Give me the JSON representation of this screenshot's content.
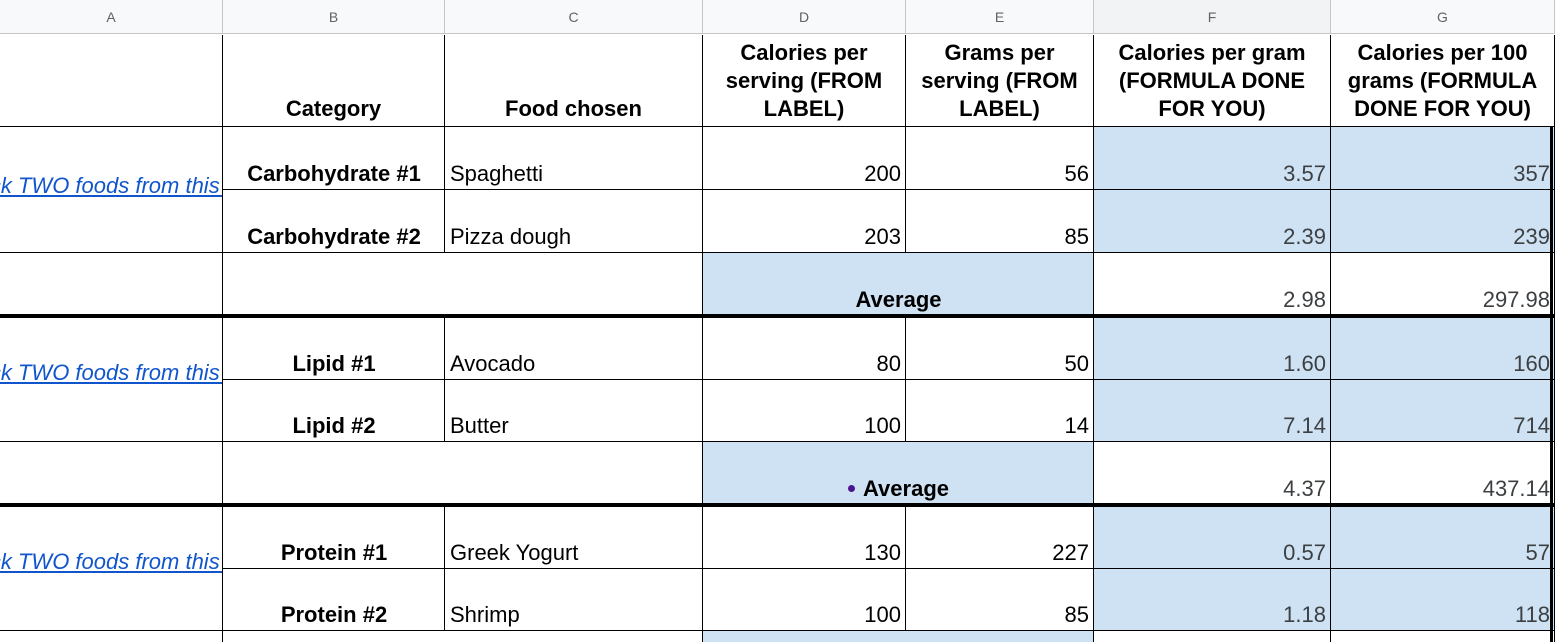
{
  "columns": [
    "A",
    "B",
    "C",
    "D",
    "E",
    "F",
    "G"
  ],
  "headers": {
    "category": "Category",
    "food_chosen": "Food chosen",
    "calories_per_serving": "Calories per serving (FROM LABEL)",
    "grams_per_serving": "Grams per serving (FROM LABEL)",
    "calories_per_gram": "Calories per gram (FORMULA DONE FOR YOU)",
    "calories_per_100g": "Calories per 100 grams (FORMULA DONE FOR YOU)"
  },
  "link_text": "Pick TWO foods from this list",
  "average_label": "Average",
  "groups": [
    {
      "rows": [
        {
          "category": "Carbohydrate #1",
          "food": "Spaghetti",
          "cal": "200",
          "grams": "56",
          "cpg": "3.57",
          "c100": "357"
        },
        {
          "category": "Carbohydrate #2",
          "food": "Pizza dough",
          "cal": "203",
          "grams": "85",
          "cpg": "2.39",
          "c100": "239"
        }
      ],
      "avg_cpg": "2.98",
      "avg_c100": "297.98"
    },
    {
      "rows": [
        {
          "category": "Lipid #1",
          "food": "Avocado",
          "cal": "80",
          "grams": "50",
          "cpg": "1.60",
          "c100": "160"
        },
        {
          "category": "Lipid #2",
          "food": "Butter",
          "cal": "100",
          "grams": "14",
          "cpg": "7.14",
          "c100": "714"
        }
      ],
      "avg_cpg": "4.37",
      "avg_c100": "437.14"
    },
    {
      "rows": [
        {
          "category": "Protein #1",
          "food": "Greek Yogurt",
          "cal": "130",
          "grams": "227",
          "cpg": "0.57",
          "c100": "57"
        },
        {
          "category": "Protein #2",
          "food": "Shrimp",
          "cal": "100",
          "grams": "85",
          "cpg": "1.18",
          "c100": "118"
        }
      ]
    }
  ],
  "colors": {
    "formula_fill": "#cfe2f3",
    "link": "#1155cc",
    "header_bg": "#f8f9fa"
  }
}
